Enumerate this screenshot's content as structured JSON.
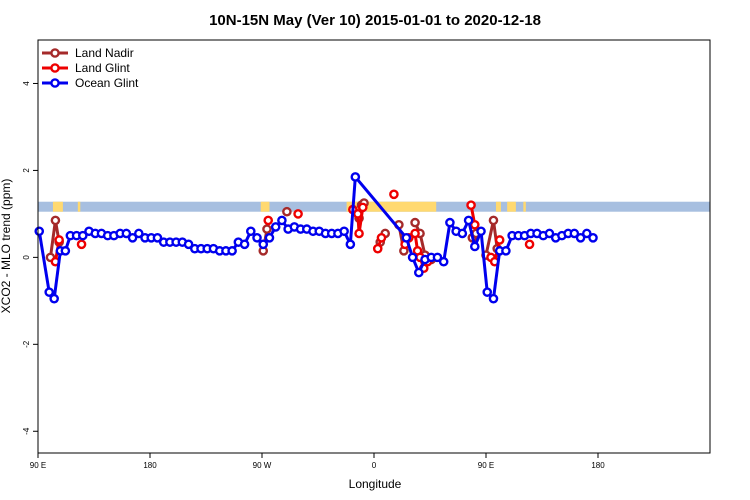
{
  "chart_data": {
    "type": "line",
    "title": "10N-15N May (Ver 10)   2015-01-01 to 2020-12-18",
    "xlabel": "Longitude",
    "ylabel": "XCO2 - MLO trend (ppm)",
    "xlim": [
      0,
      540
    ],
    "ylim": [
      -4.5,
      5
    ],
    "x_ticks": [
      {
        "value": 0,
        "label": "90 E"
      },
      {
        "value": 90,
        "label": "180"
      },
      {
        "value": 180,
        "label": "90 W"
      },
      {
        "value": 270,
        "label": "0"
      },
      {
        "value": 360,
        "label": "90 E"
      },
      {
        "value": 450,
        "label": "180"
      }
    ],
    "y_ticks": [
      {
        "value": 4,
        "label": "4"
      },
      {
        "value": 2,
        "label": "2"
      },
      {
        "value": 0,
        "label": "0"
      },
      {
        "value": -2,
        "label": "-2"
      },
      {
        "value": -4,
        "label": "-4"
      }
    ],
    "grid": false,
    "legend_position": "top-left",
    "land_band": {
      "y_range": [
        1.05,
        1.28
      ],
      "ocean_color": "#a7bfe0",
      "land_color": "#ffd970",
      "land_segments": [
        [
          12,
          20
        ],
        [
          32,
          34
        ],
        [
          179,
          186
        ],
        [
          248,
          262
        ],
        [
          264,
          320
        ],
        [
          368,
          372
        ],
        [
          377,
          384
        ],
        [
          390,
          392
        ]
      ]
    },
    "series": [
      {
        "name": "Land Nadir",
        "color": "#a52a2a",
        "points": [
          [
            10,
            0.0
          ],
          [
            14,
            0.85
          ],
          [
            17,
            0.35
          ],
          [
            181,
            0.15
          ],
          [
            184,
            0.65
          ],
          [
            200,
            1.05
          ],
          [
            258,
            0.9
          ],
          [
            260,
            1.2
          ],
          [
            262,
            1.25
          ],
          [
            275,
            0.35
          ],
          [
            279,
            0.55
          ],
          [
            290,
            0.75
          ],
          [
            294,
            0.15
          ],
          [
            303,
            0.8
          ],
          [
            307,
            0.55
          ],
          [
            311,
            0.05
          ],
          [
            316,
            -0.05
          ],
          [
            349,
            0.45
          ],
          [
            352,
            0.55
          ],
          [
            360,
            0.05
          ],
          [
            366,
            0.85
          ],
          [
            369,
            0.2
          ]
        ]
      },
      {
        "name": "Land Glint",
        "color": "#ee0000",
        "points": [
          [
            14,
            -0.1
          ],
          [
            17,
            0.4
          ],
          [
            35,
            0.3
          ],
          [
            185,
            0.85
          ],
          [
            209,
            1.0
          ],
          [
            253,
            1.1
          ],
          [
            257,
            1.0
          ],
          [
            258,
            0.55
          ],
          [
            261,
            1.15
          ],
          [
            273,
            0.2
          ],
          [
            276,
            0.45
          ],
          [
            286,
            1.45
          ],
          [
            295,
            0.3
          ],
          [
            298,
            0.45
          ],
          [
            303,
            0.55
          ],
          [
            305,
            0.15
          ],
          [
            307,
            0.0
          ],
          [
            310,
            -0.25
          ],
          [
            313,
            -0.1
          ],
          [
            348,
            1.2
          ],
          [
            351,
            0.75
          ],
          [
            364,
            0.0
          ],
          [
            367,
            -0.1
          ],
          [
            371,
            0.4
          ],
          [
            395,
            0.3
          ]
        ]
      },
      {
        "name": "Ocean Glint",
        "color": "#0000ee",
        "points": [
          [
            1,
            0.6
          ],
          [
            9,
            -0.8
          ],
          [
            13,
            -0.95
          ],
          [
            18,
            0.15
          ],
          [
            22,
            0.15
          ],
          [
            26,
            0.5
          ],
          [
            31,
            0.5
          ],
          [
            36,
            0.5
          ],
          [
            41,
            0.6
          ],
          [
            46,
            0.55
          ],
          [
            51,
            0.55
          ],
          [
            56,
            0.5
          ],
          [
            61,
            0.5
          ],
          [
            66,
            0.55
          ],
          [
            71,
            0.55
          ],
          [
            76,
            0.45
          ],
          [
            81,
            0.55
          ],
          [
            86,
            0.45
          ],
          [
            91,
            0.45
          ],
          [
            96,
            0.45
          ],
          [
            101,
            0.35
          ],
          [
            106,
            0.35
          ],
          [
            111,
            0.35
          ],
          [
            116,
            0.35
          ],
          [
            121,
            0.3
          ],
          [
            126,
            0.2
          ],
          [
            131,
            0.2
          ],
          [
            136,
            0.2
          ],
          [
            141,
            0.2
          ],
          [
            146,
            0.15
          ],
          [
            151,
            0.15
          ],
          [
            156,
            0.15
          ],
          [
            161,
            0.35
          ],
          [
            166,
            0.3
          ],
          [
            171,
            0.6
          ],
          [
            176,
            0.45
          ],
          [
            181,
            0.3
          ],
          [
            186,
            0.45
          ],
          [
            191,
            0.7
          ],
          [
            196,
            0.85
          ],
          [
            201,
            0.65
          ],
          [
            206,
            0.7
          ],
          [
            211,
            0.65
          ],
          [
            216,
            0.65
          ],
          [
            221,
            0.6
          ],
          [
            226,
            0.6
          ],
          [
            231,
            0.55
          ],
          [
            236,
            0.55
          ],
          [
            241,
            0.55
          ],
          [
            246,
            0.6
          ],
          [
            251,
            0.3
          ],
          [
            255,
            1.85
          ],
          [
            296,
            0.45
          ],
          [
            301,
            0.0
          ],
          [
            306,
            -0.35
          ],
          [
            311,
            -0.05
          ],
          [
            316,
            0.0
          ],
          [
            321,
            0.0
          ],
          [
            326,
            -0.1
          ],
          [
            331,
            0.8
          ],
          [
            336,
            0.6
          ],
          [
            341,
            0.55
          ],
          [
            346,
            0.85
          ],
          [
            351,
            0.25
          ],
          [
            356,
            0.6
          ],
          [
            361,
            -0.8
          ],
          [
            366,
            -0.95
          ],
          [
            371,
            0.15
          ],
          [
            376,
            0.15
          ],
          [
            381,
            0.5
          ],
          [
            386,
            0.5
          ],
          [
            391,
            0.5
          ],
          [
            396,
            0.55
          ],
          [
            401,
            0.55
          ],
          [
            406,
            0.5
          ],
          [
            411,
            0.55
          ],
          [
            416,
            0.45
          ],
          [
            421,
            0.5
          ],
          [
            426,
            0.55
          ],
          [
            431,
            0.55
          ],
          [
            436,
            0.45
          ],
          [
            441,
            0.55
          ],
          [
            446,
            0.45
          ]
        ]
      }
    ]
  }
}
